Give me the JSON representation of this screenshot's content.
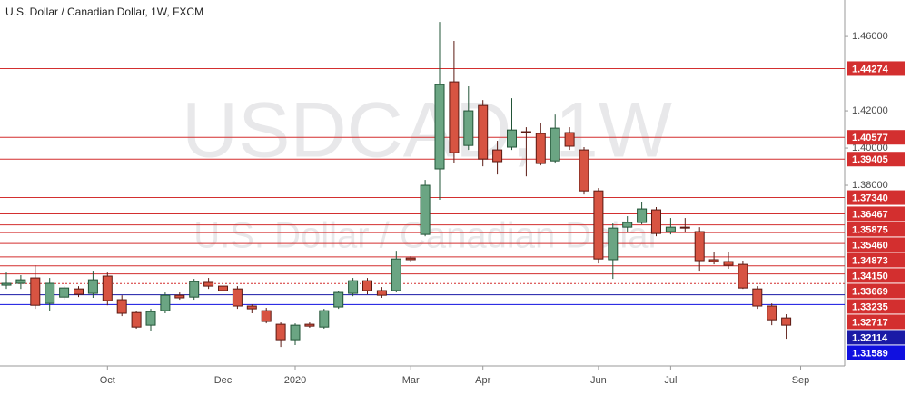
{
  "chart_data": {
    "type": "candlestick",
    "title": "U.S. Dollar / Canadian Dollar, 1W, FXCM",
    "watermark": "USDCAD, 1W",
    "watermark_subtitle": "U.S. Dollar / Canadian Dollar",
    "categories": [
      null,
      null,
      null,
      null,
      null,
      null,
      null,
      "Oct",
      null,
      null,
      null,
      null,
      null,
      null,
      null,
      "Dec",
      null,
      null,
      null,
      null,
      "2020",
      null,
      null,
      null,
      null,
      null,
      null,
      null,
      "Mar",
      null,
      null,
      null,
      null,
      "Apr",
      null,
      null,
      null,
      null,
      null,
      null,
      null,
      "Jun",
      null,
      null,
      null,
      null,
      "Jul",
      null,
      null,
      null,
      null,
      null,
      null,
      null,
      null,
      "Sep"
    ],
    "open": [
      1.3263,
      1.3273,
      1.3302,
      1.3165,
      1.3199,
      1.3243,
      1.3219,
      1.3312,
      1.3185,
      1.3116,
      1.3048,
      1.3126,
      1.3209,
      1.3199,
      1.3278,
      1.3258,
      1.3243,
      1.3151,
      1.3126,
      1.3053,
      1.297,
      1.3053,
      1.3038,
      1.3146,
      1.3219,
      1.3287,
      1.3234,
      1.3234,
      1.3409,
      1.3536,
      1.3888,
      1.4356,
      1.4014,
      1.4229,
      1.399,
      1.4005,
      1.4088,
      1.4078,
      1.3931,
      1.4083,
      1.399,
      1.377,
      1.34,
      1.3575,
      1.36,
      1.3668,
      1.3551,
      1.3575,
      1.3551,
      1.34,
      1.339,
      1.3375,
      1.3243,
      1.3151,
      1.3087,
      null
    ],
    "high": [
      1.3331,
      1.3317,
      1.337,
      1.3302,
      1.3258,
      1.3258,
      1.3341,
      1.3331,
      1.3209,
      1.3126,
      1.3136,
      1.3224,
      1.3224,
      1.3297,
      1.3302,
      1.3268,
      1.3258,
      1.316,
      1.3141,
      1.3063,
      1.3058,
      1.3063,
      1.3136,
      1.3234,
      1.3302,
      1.3302,
      1.3253,
      1.3448,
      1.3419,
      1.3829,
      1.4678,
      1.4576,
      1.4332,
      1.4258,
      1.4039,
      1.4268,
      1.4112,
      1.4136,
      1.418,
      1.4112,
      1.4005,
      1.3785,
      1.3595,
      1.3634,
      1.3712,
      1.3683,
      1.3624,
      1.3624,
      1.3575,
      1.3439,
      1.3439,
      1.3395,
      1.3258,
      1.3165,
      1.3107,
      null
    ],
    "low": [
      1.3243,
      1.3243,
      1.3136,
      1.3126,
      1.3185,
      1.3199,
      1.3195,
      1.3155,
      1.3097,
      1.3029,
      1.3019,
      1.3112,
      1.3185,
      1.3185,
      1.3243,
      1.3234,
      1.3136,
      1.3112,
      1.3058,
      1.2931,
      1.2941,
      1.3034,
      1.3029,
      1.3136,
      1.3204,
      1.3214,
      1.3195,
      1.3224,
      1.339,
      1.3526,
      1.3722,
      1.3917,
      1.399,
      1.3902,
      1.3858,
      1.399,
      1.3848,
      1.3907,
      1.3917,
      1.399,
      1.3751,
      1.338,
      1.3297,
      1.3546,
      1.359,
      1.3526,
      1.3536,
      1.3546,
      1.3341,
      1.3375,
      1.3351,
      1.3243,
      1.3136,
      1.3048,
      1.2975,
      null
    ],
    "close": [
      1.3273,
      1.3292,
      1.3155,
      1.3273,
      1.3248,
      1.3214,
      1.3292,
      1.318,
      1.3112,
      1.3038,
      1.3121,
      1.3209,
      1.3195,
      1.3282,
      1.3258,
      1.3234,
      1.3151,
      1.3136,
      1.3068,
      1.297,
      1.3048,
      1.3043,
      1.3126,
      1.3224,
      1.3287,
      1.3234,
      1.3209,
      1.3404,
      1.34,
      1.38,
      1.4341,
      1.3975,
      1.42,
      1.3941,
      1.3927,
      1.4097,
      1.4083,
      1.3917,
      1.4107,
      1.401,
      1.377,
      1.3404,
      1.357,
      1.36,
      1.3673,
      1.3541,
      1.3575,
      1.357,
      1.3395,
      1.339,
      1.337,
      1.3248,
      1.3151,
      1.3077,
      1.3048,
      null
    ],
    "up_color": "#6ba583",
    "down_color": "#d75442",
    "ylim": [
      1.2829,
      1.4781
    ],
    "yticks": [
      {
        "value": 1.46,
        "label": "1.46000"
      },
      {
        "value": 1.42,
        "label": "1.42000"
      },
      {
        "value": 1.4,
        "label": "1.40000"
      },
      {
        "value": 1.38,
        "label": "1.38000"
      }
    ],
    "levels": [
      {
        "value": 1.44274,
        "label": "1.44274",
        "color": "#d32f2f"
      },
      {
        "value": 1.40577,
        "label": "1.40577",
        "color": "#d32f2f"
      },
      {
        "value": 1.39405,
        "label": "1.39405",
        "color": "#d32f2f"
      },
      {
        "value": 1.3734,
        "label": "1.37340",
        "color": "#d32f2f"
      },
      {
        "value": 1.36467,
        "label": "1.36467",
        "color": "#d32f2f"
      },
      {
        "value": 1.35875,
        "label": "1.35875",
        "color": "#d32f2f"
      },
      {
        "value": 1.3546,
        "label": "1.35460",
        "color": "#d32f2f"
      },
      {
        "value": 1.34873,
        "label": "1.34873",
        "color": "#d32f2f"
      },
      {
        "value": 1.3415,
        "label": "1.34150",
        "color": "#d32f2f"
      },
      {
        "value": 1.33669,
        "label": "1.33669",
        "color": "#d32f2f"
      },
      {
        "value": 1.33235,
        "label": "1.33235",
        "color": "#d32f2f"
      },
      {
        "value": 1.32717,
        "label": "1.32717",
        "color": "#d32f2f",
        "dashed": true
      },
      {
        "value": 1.32114,
        "label": "1.32114",
        "color": "#1a1aa6"
      },
      {
        "value": 1.31589,
        "label": "1.31589",
        "color": "#1010e0"
      }
    ]
  }
}
